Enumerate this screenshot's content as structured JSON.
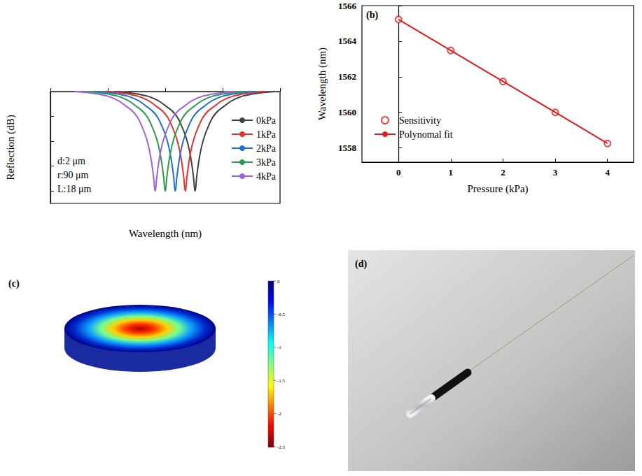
{
  "chart_data": [
    {
      "type": "line",
      "x_label": "Wavelength (nm)",
      "y_label": "Reflection (dB)",
      "annotations": [
        "d:2 μm",
        "r:90 μm",
        "L:18 μm"
      ],
      "xlim": [
        1540,
        1580
      ],
      "xticks": [
        1540,
        1550,
        1560,
        1570,
        1580
      ],
      "ylim": [
        -45,
        0
      ],
      "yticks": [
        -40,
        -30,
        -20,
        -10,
        0
      ],
      "tick_labels": false,
      "grid": false,
      "legend": "right",
      "line_style": "solid",
      "series": [
        {
          "name": "0kPa",
          "color": "#404040",
          "x": [
            1551.2,
            1555.2,
            1558.2,
            1560.2,
            1561.7,
            1562.7,
            1563.7,
            1564.4,
            1564.9,
            1565.2,
            1565.5,
            1566.0,
            1566.7,
            1567.7,
            1568.7,
            1570.2,
            1572.2,
            1575.2,
            1579.2
          ],
          "values": [
            0,
            -1,
            -3,
            -6,
            -9,
            -13,
            -19,
            -26,
            -34,
            -40,
            -34,
            -26,
            -19,
            -13,
            -9,
            -6,
            -3,
            -1,
            0
          ]
        },
        {
          "name": "1kPa",
          "color": "#e8302a",
          "x": [
            1549.5,
            1553.5,
            1556.5,
            1558.5,
            1560.0,
            1561.0,
            1562.0,
            1562.7,
            1563.2,
            1563.5,
            1563.8,
            1564.3,
            1565.0,
            1566.0,
            1567.0,
            1568.5,
            1570.5,
            1573.5,
            1577.5
          ],
          "values": [
            0,
            -1,
            -3,
            -6,
            -9,
            -13,
            -19,
            -26,
            -34,
            -40,
            -34,
            -26,
            -19,
            -13,
            -9,
            -6,
            -3,
            -1,
            0
          ]
        },
        {
          "name": "2kPa",
          "color": "#1f6fd6",
          "x": [
            1547.75,
            1551.75,
            1554.75,
            1556.75,
            1558.25,
            1559.25,
            1560.25,
            1560.95,
            1561.45,
            1561.75,
            1562.05,
            1562.55,
            1563.25,
            1564.25,
            1565.25,
            1566.75,
            1568.75,
            1571.75,
            1575.75
          ],
          "values": [
            0,
            -1,
            -3,
            -6,
            -9,
            -13,
            -19,
            -26,
            -34,
            -40,
            -34,
            -26,
            -19,
            -13,
            -9,
            -6,
            -3,
            -1,
            0
          ]
        },
        {
          "name": "3kPa",
          "color": "#2c9c4a",
          "x": [
            1546.0,
            1550.0,
            1553.0,
            1555.0,
            1556.5,
            1557.5,
            1558.5,
            1559.2,
            1559.7,
            1560.0,
            1560.3,
            1560.8,
            1561.5,
            1562.5,
            1563.5,
            1565.0,
            1567.0,
            1570.0,
            1574.0
          ],
          "values": [
            0,
            -1,
            -3,
            -6,
            -9,
            -13,
            -19,
            -26,
            -34,
            -40,
            -34,
            -26,
            -19,
            -13,
            -9,
            -6,
            -3,
            -1,
            0
          ]
        },
        {
          "name": "4kPa",
          "color": "#a060e0",
          "x": [
            1544.25,
            1548.25,
            1551.25,
            1553.25,
            1554.75,
            1555.75,
            1556.75,
            1557.45,
            1557.95,
            1558.25,
            1558.55,
            1559.05,
            1559.75,
            1560.75,
            1561.75,
            1563.25,
            1565.25,
            1568.25,
            1572.25
          ],
          "values": [
            0,
            -1,
            -3,
            -6,
            -9,
            -13,
            -19,
            -26,
            -34,
            -40,
            -34,
            -26,
            -19,
            -13,
            -9,
            -6,
            -3,
            -1,
            0
          ]
        }
      ]
    },
    {
      "type": "scatter",
      "title": "(b)",
      "x_label": "Pressure (kPa)",
      "y_label": "Wavelength (nm)",
      "xlim": [
        -0.7,
        4.5
      ],
      "xticks": [
        0,
        1,
        2,
        3,
        4
      ],
      "ylim": [
        1557.2,
        1566
      ],
      "yticks": [
        1558,
        1560,
        1562,
        1564,
        1566
      ],
      "grid": false,
      "legend": "lower left",
      "series": [
        {
          "name": "Sensitivity",
          "type": "scatter",
          "marker": "circle",
          "color": "#e41a1c",
          "x": [
            0,
            1,
            2,
            3,
            4
          ],
          "values": [
            1565.22,
            1563.48,
            1561.74,
            1560.0,
            1558.25
          ]
        },
        {
          "name": "Polynomal fit",
          "type": "line",
          "line_style": "solid",
          "color": "#e41a1c",
          "x": [
            0,
            1,
            2,
            3,
            4
          ],
          "values": [
            1565.22,
            1563.48,
            1561.74,
            1560.0,
            1558.26
          ]
        }
      ]
    }
  ],
  "panels": [
    {
      "title": "(c)",
      "type": "simulation",
      "colorbar": {
        "range": [
          -2.51,
          0
        ],
        "ticks": [
          0,
          -0.5,
          -1,
          -1.5,
          -2,
          -2.5
        ]
      }
    },
    {
      "title": "(d)",
      "type": "photo"
    }
  ]
}
